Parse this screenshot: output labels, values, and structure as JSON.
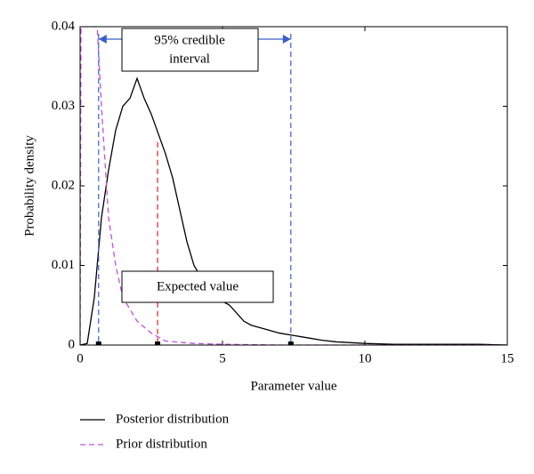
{
  "chart_data": {
    "type": "line",
    "x_label": "Parameter value",
    "y_label": "Probability density",
    "xlim": [
      0,
      15
    ],
    "ylim": [
      0,
      0.04
    ],
    "xticks": [
      0,
      5,
      10,
      15
    ],
    "yticks": [
      0,
      0.01,
      0.02,
      0.03,
      0.04
    ],
    "legend": "bottom-left",
    "series": [
      {
        "name": "Posterior distribution",
        "color": "#000000",
        "dash": "solid",
        "x": [
          0,
          0.25,
          0.5,
          0.75,
          1.0,
          1.25,
          1.5,
          1.75,
          2.0,
          2.25,
          2.5,
          2.75,
          3.0,
          3.25,
          3.5,
          3.75,
          4.0,
          4.25,
          4.5,
          4.75,
          5.0,
          5.25,
          5.5,
          5.75,
          6.0,
          6.5,
          7.0,
          7.5,
          8.0,
          8.5,
          9.0,
          9.5,
          10,
          11,
          12,
          13,
          14,
          15
        ],
        "values": [
          0,
          0.0002,
          0.006,
          0.016,
          0.022,
          0.027,
          0.03,
          0.031,
          0.0335,
          0.031,
          0.029,
          0.0265,
          0.024,
          0.021,
          0.017,
          0.013,
          0.01,
          0.0085,
          0.007,
          0.006,
          0.0055,
          0.005,
          0.004,
          0.003,
          0.0025,
          0.002,
          0.0015,
          0.0012,
          0.0009,
          0.0006,
          0.0004,
          0.0003,
          0.0002,
          0.0001,
          0.0001,
          0.0001,
          0.0001,
          0
        ]
      },
      {
        "name": "Prior distribution",
        "color": "#c050e0",
        "dash": "dashed",
        "x": [
          0,
          0.03,
          0.6,
          0.75,
          1.0,
          1.25,
          1.5,
          2.0,
          2.5,
          3.0,
          4.0,
          5.0,
          7.0,
          15
        ],
        "values": [
          0,
          0.04,
          0.04,
          0.03,
          0.016,
          0.01,
          0.006,
          0.003,
          0.0015,
          0.0005,
          0.0002,
          0.0001,
          0,
          0
        ]
      }
    ],
    "credible_interval": [
      0.65,
      7.4
    ],
    "credible_interval_label": [
      "95% credible",
      "interval"
    ],
    "expected_value": 2.72,
    "expected_value_label": "Expected value"
  }
}
